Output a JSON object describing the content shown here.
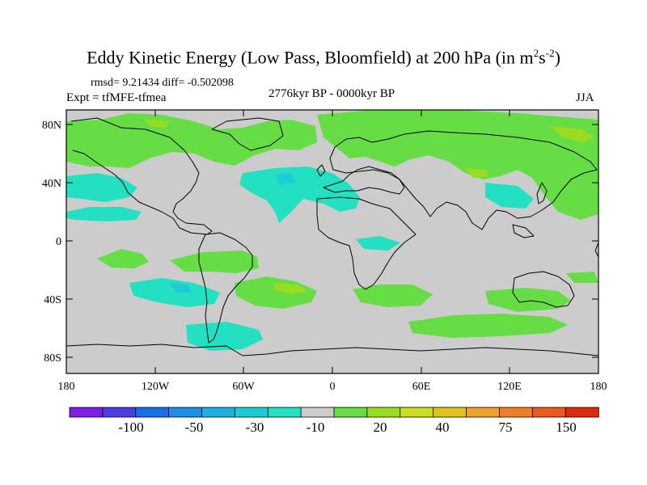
{
  "title": {
    "main": "Eddy Kinetic Energy (Low Pass, Bloomfield) at 200 hPa (in m",
    "sup1": "2",
    "mid": "s",
    "sup2": "-2",
    "end": ")"
  },
  "stats": "rmsd= 9.21434 diff= -0.502098",
  "experiment": "Expt = tfMFE-tfmea",
  "period": "2776kyr BP - 0000kyr BP",
  "season": "JJA",
  "lat_ticks": [
    "80N",
    "40N",
    "0",
    "40S",
    "80S"
  ],
  "lon_ticks": [
    "180",
    "120W",
    "60W",
    "0",
    "60E",
    "120E",
    "180"
  ],
  "colorbar": {
    "labels": [
      "-100",
      "-50",
      "-30",
      "-10",
      "20",
      "40",
      "75",
      "150"
    ],
    "colors": [
      "#7f1fe6",
      "#4a3fe0",
      "#1a6ee6",
      "#1e8fe6",
      "#1eb0e0",
      "#1ecbd8",
      "#24e0c2",
      "#cccccc",
      "#66dd44",
      "#99dd22",
      "#ccdd22",
      "#e0c21e",
      "#eda12e",
      "#ef7e2a",
      "#ea5a1c",
      "#dd2a12"
    ]
  },
  "chart_data": {
    "type": "heatmap",
    "title": "Eddy Kinetic Energy (Low Pass, Bloomfield) at 200 hPa (in m^2 s^-2)",
    "subtitle": "2776kyr BP - 0000kyr BP",
    "season": "JJA",
    "xlim": [
      -180,
      180
    ],
    "ylim": [
      -90,
      90
    ],
    "x_ticks": [
      "180",
      "120W",
      "60W",
      "0",
      "60E",
      "120E",
      "180"
    ],
    "y_ticks": [
      "80N",
      "40N",
      "0",
      "40S",
      "80S"
    ],
    "levels": [
      -100,
      -50,
      -30,
      -10,
      20,
      40,
      75,
      150
    ],
    "rmsd": 9.21434,
    "diff": -0.502098
  }
}
